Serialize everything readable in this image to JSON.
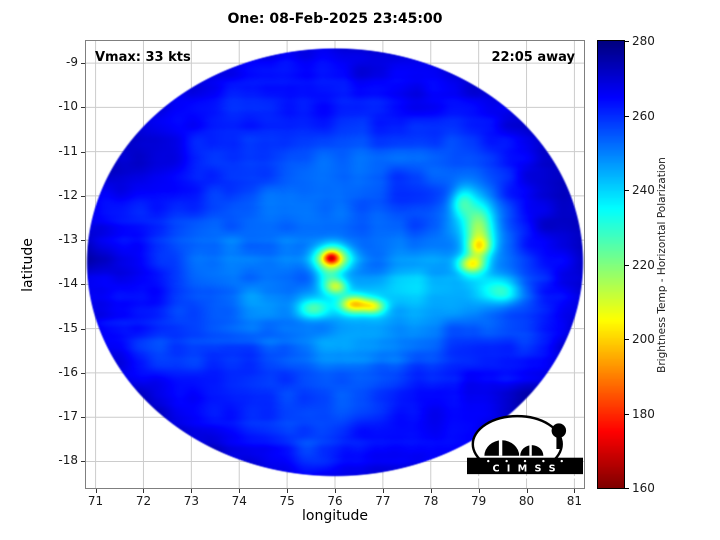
{
  "chart_data": {
    "type": "heatmap",
    "title": "One: 08-Feb-2025 23:45:00",
    "xlabel": "longitude",
    "ylabel": "latitude",
    "xlim": [
      70.8,
      81.2
    ],
    "ylim": [
      -18.6,
      -8.5
    ],
    "xticks": [
      71,
      72,
      73,
      74,
      75,
      76,
      77,
      78,
      79,
      80,
      81
    ],
    "yticks": [
      -9,
      -10,
      -11,
      -12,
      -13,
      -14,
      -15,
      -16,
      -17,
      -18
    ],
    "grid": true,
    "annotations": {
      "vmax": "Vmax: 33 kts",
      "time_away": "22:05 away"
    },
    "colorbar": {
      "label": "Brightness Temp - Horizontal Polarization",
      "min": 160,
      "max": 280,
      "ticks": [
        280,
        260,
        240,
        220,
        200,
        180,
        160
      ],
      "colormap": "jet_reversed"
    },
    "swath": {
      "center_lon": 76.0,
      "center_lat": -13.5,
      "radius_lon": 5.2,
      "radius_lat": 4.85,
      "base_temp_k": 252,
      "rim_temp_delta_k": 16
    },
    "noise": {
      "coarse_amp_k": 4.5,
      "coarse_freq": 0.9,
      "fine_amp_k": 2.5,
      "fine_freq": 2.6,
      "streak_amp_k": 1.2,
      "seed1": 77,
      "seed2": 1234,
      "seed3": 999
    },
    "feature_fields": [
      "lon",
      "lat",
      "sigma_lon_deg",
      "sigma_lat_deg",
      "delta_temp_k"
    ],
    "features": [
      [
        75.95,
        -13.42,
        0.36,
        0.3,
        -55
      ],
      [
        75.92,
        -13.4,
        0.15,
        0.13,
        -28
      ],
      [
        76.05,
        -14.05,
        0.22,
        0.18,
        -28
      ],
      [
        76.4,
        -14.45,
        0.3,
        0.2,
        -42
      ],
      [
        76.8,
        -14.5,
        0.25,
        0.17,
        -30
      ],
      [
        75.55,
        -14.55,
        0.33,
        0.22,
        -22
      ],
      [
        76.2,
        -14.4,
        0.95,
        0.45,
        -10
      ],
      [
        75.85,
        -13.95,
        0.25,
        0.3,
        -15
      ],
      [
        79.0,
        -12.8,
        0.3,
        0.65,
        -30
      ],
      [
        79.0,
        -13.15,
        0.25,
        0.22,
        -25
      ],
      [
        78.85,
        -13.55,
        0.28,
        0.2,
        -38
      ],
      [
        78.65,
        -12.15,
        0.25,
        0.35,
        -20
      ],
      [
        79.1,
        -13.0,
        0.85,
        1.0,
        -11
      ],
      [
        79.45,
        -14.15,
        0.45,
        0.28,
        -22
      ],
      [
        77.8,
        -14.05,
        1.1,
        0.45,
        -8
      ],
      [
        76.2,
        -15.3,
        1.3,
        0.45,
        -6
      ],
      [
        72.9,
        -11.3,
        1.3,
        1.1,
        9
      ],
      [
        76.3,
        -10.2,
        1.6,
        0.9,
        8
      ],
      [
        74.2,
        -16.2,
        1.4,
        0.9,
        7
      ],
      [
        78.3,
        -16.6,
        1.3,
        0.9,
        9
      ],
      [
        80.3,
        -12.3,
        0.9,
        1.1,
        8
      ],
      [
        71.9,
        -13.8,
        0.8,
        1.0,
        7
      ],
      [
        77.3,
        -11.7,
        1.1,
        0.8,
        5
      ]
    ],
    "logo_text": "C I M S S"
  }
}
